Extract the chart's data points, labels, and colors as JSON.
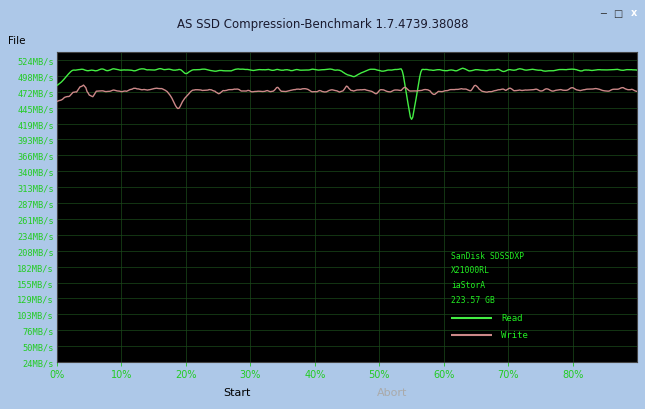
{
  "title": "AS SSD Compression-Benchmark 1.7.4739.38088",
  "title_bar_color": "#adc8e8",
  "menu_bar_color": "#f0f0f0",
  "chart_bg": "#000000",
  "outer_bg": "#d4d0c8",
  "grid_color": "#1a4a1a",
  "ylabel_color": "#22cc22",
  "xlabel_color": "#22cc22",
  "read_color": "#44ee44",
  "write_color": "#cc8888",
  "y_ticks": [
    24,
    50,
    76,
    103,
    129,
    155,
    182,
    208,
    234,
    261,
    287,
    313,
    340,
    366,
    393,
    419,
    445,
    472,
    498,
    524
  ],
  "x_ticks": [
    0,
    10,
    20,
    30,
    40,
    50,
    60,
    70,
    80
  ],
  "x_tick_labels": [
    "0%",
    "10%",
    "20%",
    "30%",
    "40%",
    "50%",
    "60%",
    "70%",
    "80%"
  ],
  "ylim": [
    24,
    537
  ],
  "xlim": [
    0,
    90
  ],
  "legend_text": [
    "SanDisk SDSSDXP",
    "X21000RL",
    "iaStorA",
    "223.57 GB"
  ],
  "legend_read": "Read",
  "legend_write": "Write",
  "legend_border_color": "#22aa22",
  "legend_bg": "#000000",
  "legend_text_color": "#22ee22",
  "btn_bg": "#f0f0f0",
  "btn_border": "#aaaaaa",
  "x_close_color": "#cc2222",
  "figwidth": 6.45,
  "figheight": 4.1,
  "dpi": 100
}
